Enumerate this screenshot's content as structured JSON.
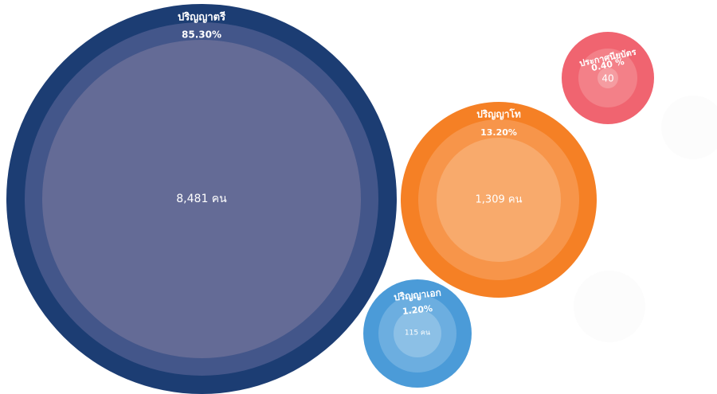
{
  "chart_data": {
    "type": "bubble",
    "items": [
      {
        "name": "ปริญญาตรี",
        "percent_label": "85.30%",
        "count_label": "8,481 คน",
        "percent": 85.3,
        "count": 8481,
        "colors": {
          "outer": "#1c3d73",
          "middle": "#43568a",
          "inner": "#646b96"
        }
      },
      {
        "name": "ปริญญาโท",
        "percent_label": "13.20%",
        "count_label": "1,309 คน",
        "percent": 13.2,
        "count": 1309,
        "colors": {
          "outer": "#f58025",
          "middle": "#f7954a",
          "inner": "#f8aa6c"
        }
      },
      {
        "name": "ปริญญาเอก",
        "percent_label": "1.20%",
        "count_label": "115 คน",
        "percent": 1.2,
        "count": 115,
        "colors": {
          "outer": "#4b9bd8",
          "middle": "#6caee0",
          "inner": "#8cc0e6"
        }
      },
      {
        "name": "ประกาศนียบัตร",
        "percent_label": "0.40 %",
        "count_label": "40",
        "percent": 0.4,
        "count": 40,
        "colors": {
          "outer": "#f06470",
          "middle": "#f38088",
          "inner": "#f59ca1"
        }
      }
    ]
  }
}
